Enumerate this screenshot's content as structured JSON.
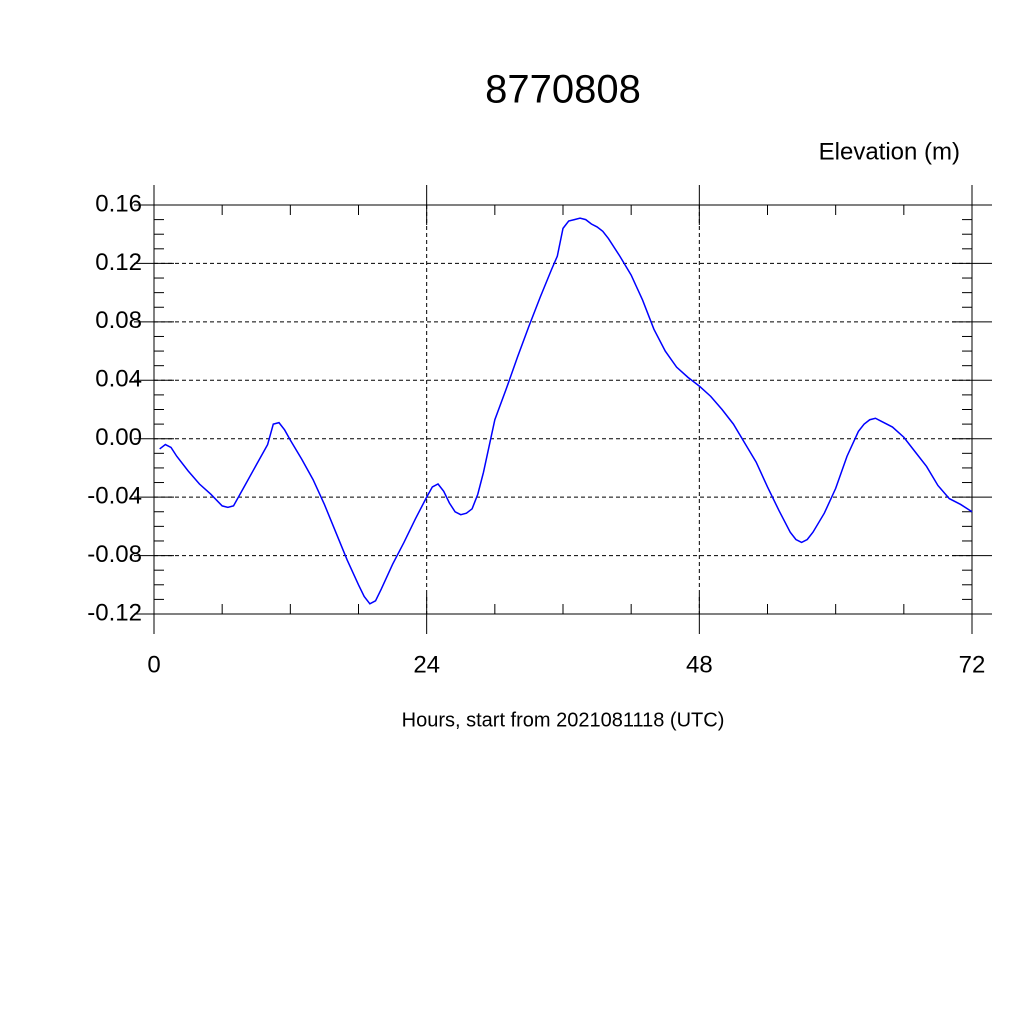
{
  "chart_data": {
    "type": "line",
    "title": "8770808",
    "y_label": "Elevation (m)",
    "x_label": "Hours, start from 2021081118 (UTC)",
    "x": [
      0.5,
      1,
      1.5,
      2,
      3,
      4,
      5,
      6,
      6.5,
      7,
      8,
      9,
      10,
      10.5,
      11,
      11.5,
      12,
      13,
      14,
      15,
      16,
      17,
      18,
      18.5,
      19,
      19.5,
      20,
      21,
      22,
      23,
      24,
      24.5,
      25,
      25.5,
      26,
      26.5,
      27,
      27.5,
      28,
      28.5,
      29,
      30,
      31,
      32,
      33,
      34,
      35,
      35.5,
      36,
      36.5,
      37,
      37.5,
      38,
      38.5,
      39,
      39.5,
      40,
      41,
      42,
      43,
      44,
      45,
      46,
      47,
      48,
      49,
      50,
      51,
      52,
      53,
      54,
      55,
      56,
      56.5,
      57,
      57.5,
      58,
      59,
      60,
      61,
      62,
      62.5,
      63,
      63.5,
      64,
      65,
      66,
      67,
      68,
      69,
      70,
      71,
      72
    ],
    "series": [
      {
        "name": "Elevation",
        "color": "#0000ff",
        "values": [
          -0.007,
          -0.004,
          -0.006,
          -0.012,
          -0.022,
          -0.031,
          -0.038,
          -0.046,
          -0.047,
          -0.046,
          -0.032,
          -0.018,
          -0.004,
          0.01,
          0.011,
          0.006,
          -0.001,
          -0.014,
          -0.028,
          -0.045,
          -0.064,
          -0.083,
          -0.1,
          -0.108,
          -0.113,
          -0.111,
          -0.103,
          -0.086,
          -0.071,
          -0.055,
          -0.04,
          -0.033,
          -0.031,
          -0.036,
          -0.044,
          -0.05,
          -0.052,
          -0.051,
          -0.048,
          -0.038,
          -0.023,
          0.013,
          0.034,
          0.056,
          0.077,
          0.097,
          0.116,
          0.125,
          0.144,
          0.149,
          0.15,
          0.151,
          0.15,
          0.147,
          0.145,
          0.142,
          0.137,
          0.125,
          0.112,
          0.095,
          0.075,
          0.06,
          0.049,
          0.042,
          0.036,
          0.029,
          0.02,
          0.01,
          -0.003,
          -0.016,
          -0.033,
          -0.049,
          -0.064,
          -0.069,
          -0.071,
          -0.069,
          -0.064,
          -0.051,
          -0.034,
          -0.012,
          0.005,
          0.01,
          0.013,
          0.014,
          0.012,
          0.008,
          0.001,
          -0.009,
          -0.019,
          -0.032,
          -0.041,
          -0.045,
          -0.05
        ]
      }
    ],
    "xlim": [
      0,
      72
    ],
    "xticks": [
      0,
      24,
      48,
      72
    ],
    "ylim": [
      -0.12,
      0.16
    ],
    "yticks": [
      -0.12,
      -0.08,
      -0.04,
      {
        "value": 0,
        "label": "0.00"
      },
      0.04,
      0.08,
      0.12,
      0.16
    ],
    "grid": true
  }
}
